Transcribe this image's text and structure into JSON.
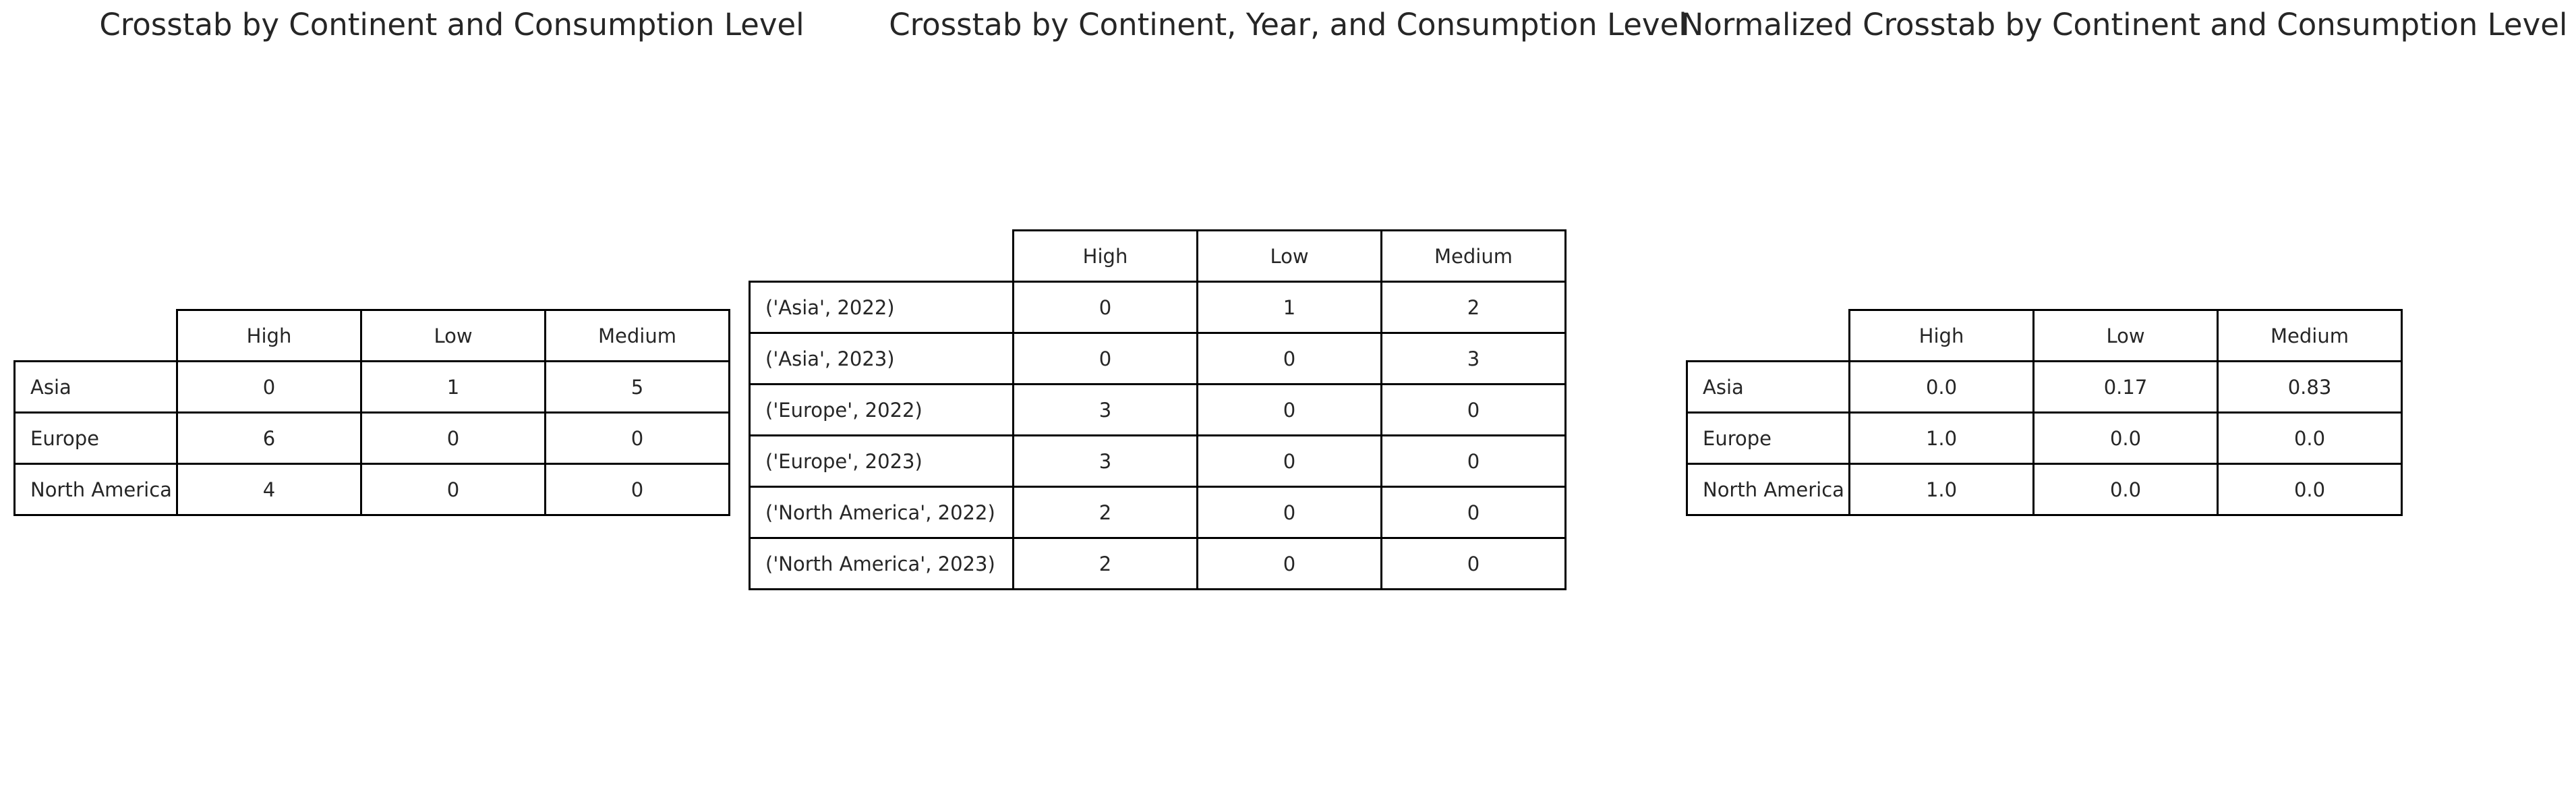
{
  "tables": [
    {
      "title": "Crosstab by Continent and Consumption Level",
      "columns": [
        "High",
        "Low",
        "Medium"
      ],
      "rows": [
        {
          "label": "Asia",
          "values": [
            "0",
            "1",
            "5"
          ]
        },
        {
          "label": "Europe",
          "values": [
            "6",
            "0",
            "0"
          ]
        },
        {
          "label": "North America",
          "values": [
            "4",
            "0",
            "0"
          ]
        }
      ]
    },
    {
      "title": "Crosstab by Continent, Year, and Consumption Level",
      "columns": [
        "High",
        "Low",
        "Medium"
      ],
      "rows": [
        {
          "label": "('Asia', 2022)",
          "values": [
            "0",
            "1",
            "2"
          ]
        },
        {
          "label": "('Asia', 2023)",
          "values": [
            "0",
            "0",
            "3"
          ]
        },
        {
          "label": "('Europe', 2022)",
          "values": [
            "3",
            "0",
            "0"
          ]
        },
        {
          "label": "('Europe', 2023)",
          "values": [
            "3",
            "0",
            "0"
          ]
        },
        {
          "label": "('North America', 2022)",
          "values": [
            "2",
            "0",
            "0"
          ]
        },
        {
          "label": "('North America', 2023)",
          "values": [
            "2",
            "0",
            "0"
          ]
        }
      ]
    },
    {
      "title": "Normalized Crosstab by Continent and Consumption Level",
      "columns": [
        "High",
        "Low",
        "Medium"
      ],
      "rows": [
        {
          "label": "Asia",
          "values": [
            "0.0",
            "0.17",
            "0.83"
          ]
        },
        {
          "label": "Europe",
          "values": [
            "1.0",
            "0.0",
            "0.0"
          ]
        },
        {
          "label": "North America",
          "values": [
            "1.0",
            "0.0",
            "0.0"
          ]
        }
      ]
    }
  ],
  "chart_data": [
    {
      "type": "table",
      "title": "Crosstab by Continent and Consumption Level",
      "columns": [
        "High",
        "Low",
        "Medium"
      ],
      "row_labels": [
        "Asia",
        "Europe",
        "North America"
      ],
      "values": [
        [
          0,
          1,
          5
        ],
        [
          6,
          0,
          0
        ],
        [
          4,
          0,
          0
        ]
      ]
    },
    {
      "type": "table",
      "title": "Crosstab by Continent, Year, and Consumption Level",
      "columns": [
        "High",
        "Low",
        "Medium"
      ],
      "row_labels": [
        "('Asia', 2022)",
        "('Asia', 2023)",
        "('Europe', 2022)",
        "('Europe', 2023)",
        "('North America', 2022)",
        "('North America', 2023)"
      ],
      "values": [
        [
          0,
          1,
          2
        ],
        [
          0,
          0,
          3
        ],
        [
          3,
          0,
          0
        ],
        [
          3,
          0,
          0
        ],
        [
          2,
          0,
          0
        ],
        [
          2,
          0,
          0
        ]
      ]
    },
    {
      "type": "table",
      "title": "Normalized Crosstab by Continent and Consumption Level",
      "columns": [
        "High",
        "Low",
        "Medium"
      ],
      "row_labels": [
        "Asia",
        "Europe",
        "North America"
      ],
      "values": [
        [
          0.0,
          0.17,
          0.83
        ],
        [
          1.0,
          0.0,
          0.0
        ],
        [
          1.0,
          0.0,
          0.0
        ]
      ]
    }
  ]
}
